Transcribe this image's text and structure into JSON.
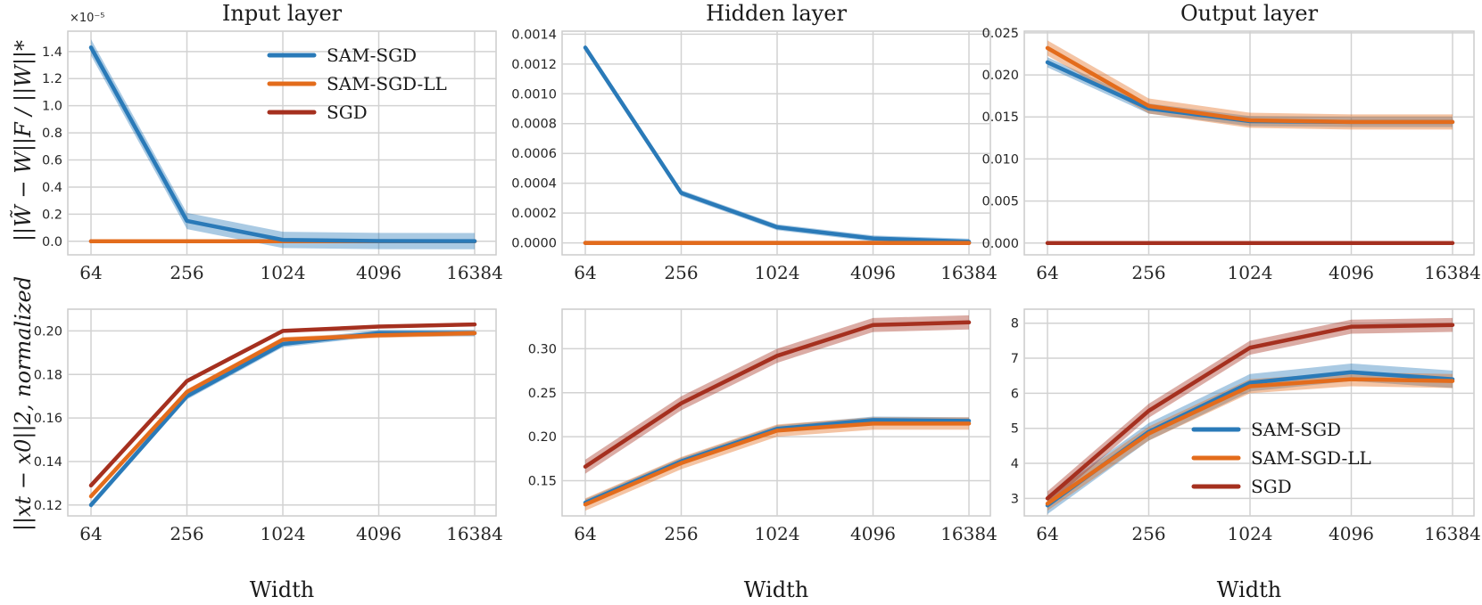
{
  "figure": {
    "xlabel": "Width",
    "ylabel_top": "||W̃ − W||F / ||W||*",
    "ylabel_bottom": "||xt − x0||2, normalized"
  },
  "colors": {
    "SAM-SGD": "#2a7ab8",
    "SAM-SGD-LL": "#e36c1c",
    "SGD": "#a5301f"
  },
  "chart_data": [
    {
      "id": "input-top",
      "type": "line",
      "title": "Input layer",
      "xscale": "log2",
      "categories": [
        "64",
        "256",
        "1024",
        "4096",
        "16384"
      ],
      "x": [
        64,
        256,
        1024,
        4096,
        16384
      ],
      "ylim": [
        -1e-06,
        1.55e-05
      ],
      "yticks": [
        0,
        2e-06,
        4e-06,
        6e-06,
        8e-06,
        1e-05,
        1.2e-05,
        1.4e-05
      ],
      "ytick_labels": [
        "0.0",
        "0.2",
        "0.4",
        "0.6",
        "0.8",
        "1.0",
        "1.2",
        "1.4"
      ],
      "scale_note": "×10⁻⁵",
      "legend": "top-right",
      "series": [
        {
          "name": "SGD",
          "values": [
            0,
            0,
            0,
            0,
            0
          ],
          "band": 0
        },
        {
          "name": "SAM-SGD-LL",
          "values": [
            0,
            0,
            0,
            0,
            0
          ],
          "band": 0
        },
        {
          "name": "SAM-SGD",
          "values": [
            1.43e-05,
            1.5e-06,
            1e-07,
            2e-08,
            1e-08
          ],
          "band": 6e-07
        }
      ]
    },
    {
      "id": "hidden-top",
      "type": "line",
      "title": "Hidden layer",
      "xscale": "log2",
      "categories": [
        "64",
        "256",
        "1024",
        "4096",
        "16384"
      ],
      "x": [
        64,
        256,
        1024,
        4096,
        16384
      ],
      "ylim": [
        -8e-05,
        0.00142
      ],
      "yticks": [
        0,
        0.0002,
        0.0004,
        0.0006,
        0.0008,
        0.001,
        0.0012,
        0.0014
      ],
      "ytick_labels": [
        "0.0000",
        "0.0002",
        "0.0004",
        "0.0006",
        "0.0008",
        "0.0010",
        "0.0012",
        "0.0014"
      ],
      "series": [
        {
          "name": "SGD",
          "values": [
            0,
            0,
            0,
            0,
            0
          ],
          "band": 0
        },
        {
          "name": "SAM-SGD",
          "values": [
            0.00131,
            0.000335,
            0.000105,
            3e-05,
            8e-06
          ],
          "band": 2e-05
        },
        {
          "name": "SAM-SGD-LL",
          "values": [
            0,
            0,
            0,
            0,
            0
          ],
          "band": 0
        }
      ]
    },
    {
      "id": "output-top",
      "type": "line",
      "title": "Output layer",
      "xscale": "log2",
      "categories": [
        "64",
        "256",
        "1024",
        "4096",
        "16384"
      ],
      "x": [
        64,
        256,
        1024,
        4096,
        16384
      ],
      "ylim": [
        -0.0014,
        0.0252
      ],
      "yticks": [
        0,
        0.005,
        0.01,
        0.015,
        0.02,
        0.025
      ],
      "ytick_labels": [
        "0.000",
        "0.005",
        "0.010",
        "0.015",
        "0.020",
        "0.025"
      ],
      "series": [
        {
          "name": "SGD",
          "values": [
            0,
            0,
            0,
            0,
            0
          ],
          "band": 0
        },
        {
          "name": "SAM-SGD",
          "values": [
            0.0215,
            0.016,
            0.0145,
            0.0144,
            0.0144
          ],
          "band": 0.0006
        },
        {
          "name": "SAM-SGD-LL",
          "values": [
            0.0232,
            0.0163,
            0.0146,
            0.0144,
            0.0144
          ],
          "band": 0.0009
        }
      ]
    },
    {
      "id": "input-bottom",
      "type": "line",
      "xscale": "log2",
      "categories": [
        "64",
        "256",
        "1024",
        "4096",
        "16384"
      ],
      "x": [
        64,
        256,
        1024,
        4096,
        16384
      ],
      "ylim": [
        0.115,
        0.21
      ],
      "yticks": [
        0.12,
        0.14,
        0.16,
        0.18,
        0.2
      ],
      "ytick_labels": [
        "0.12",
        "0.14",
        "0.16",
        "0.18",
        "0.20"
      ],
      "series": [
        {
          "name": "SAM-SGD",
          "values": [
            0.12,
            0.17,
            0.194,
            0.199,
            0.199
          ],
          "band": 0.0015
        },
        {
          "name": "SAM-SGD-LL",
          "values": [
            0.124,
            0.172,
            0.196,
            0.198,
            0.199
          ],
          "band": 0.0012
        },
        {
          "name": "SGD",
          "values": [
            0.129,
            0.177,
            0.2,
            0.202,
            0.203
          ],
          "band": 0.0008
        }
      ]
    },
    {
      "id": "hidden-bottom",
      "type": "line",
      "xscale": "log2",
      "categories": [
        "64",
        "256",
        "1024",
        "4096",
        "16384"
      ],
      "x": [
        64,
        256,
        1024,
        4096,
        16384
      ],
      "ylim": [
        0.11,
        0.345
      ],
      "yticks": [
        0.15,
        0.2,
        0.25,
        0.3
      ],
      "ytick_labels": [
        "0.15",
        "0.20",
        "0.25",
        "0.30"
      ],
      "series": [
        {
          "name": "SAM-SGD",
          "values": [
            0.125,
            0.172,
            0.209,
            0.219,
            0.218
          ],
          "band": 0.004
        },
        {
          "name": "SAM-SGD-LL",
          "values": [
            0.123,
            0.17,
            0.207,
            0.215,
            0.215
          ],
          "band": 0.007
        },
        {
          "name": "SGD",
          "values": [
            0.166,
            0.238,
            0.292,
            0.327,
            0.33
          ],
          "band": 0.008
        }
      ]
    },
    {
      "id": "output-bottom",
      "type": "line",
      "xscale": "log2",
      "categories": [
        "64",
        "256",
        "1024",
        "4096",
        "16384"
      ],
      "x": [
        64,
        256,
        1024,
        4096,
        16384
      ],
      "ylim": [
        2.5,
        8.4
      ],
      "yticks": [
        3,
        4,
        5,
        6,
        7,
        8
      ],
      "ytick_labels": [
        "3",
        "4",
        "5",
        "6",
        "7",
        "8"
      ],
      "legend": "bottom-right",
      "series": [
        {
          "name": "SAM-SGD",
          "values": [
            2.8,
            4.9,
            6.3,
            6.6,
            6.4
          ],
          "band": 0.25
        },
        {
          "name": "SAM-SGD-LL",
          "values": [
            2.85,
            4.85,
            6.2,
            6.4,
            6.35
          ],
          "band": 0.2
        },
        {
          "name": "SGD",
          "values": [
            3.0,
            5.5,
            7.3,
            7.9,
            7.95
          ],
          "band": 0.2
        }
      ]
    }
  ]
}
